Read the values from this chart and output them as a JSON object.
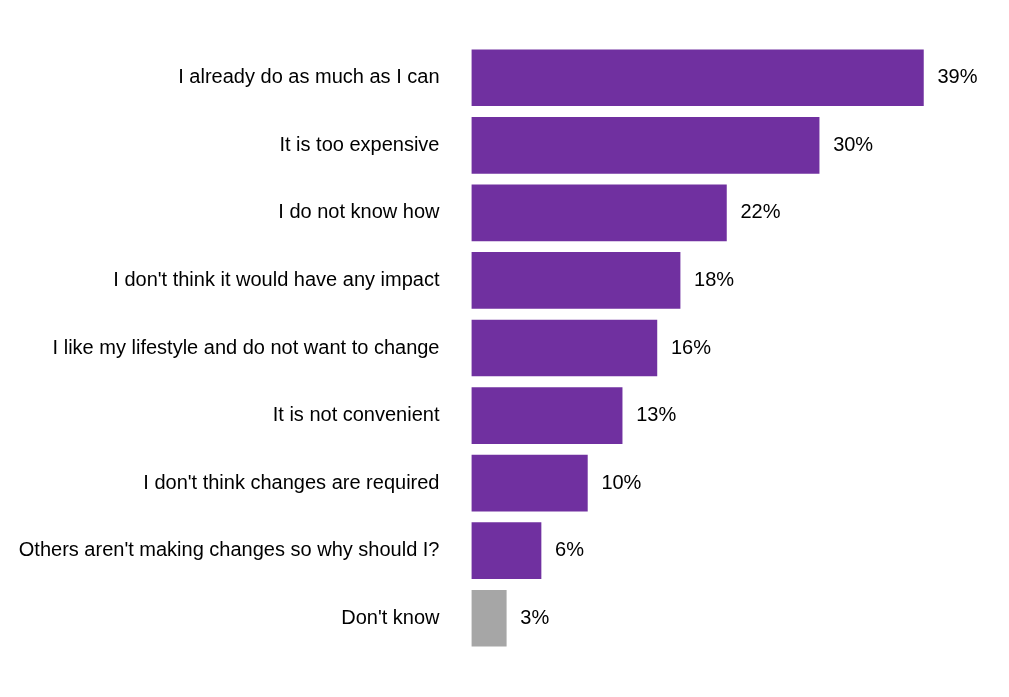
{
  "chart_data": {
    "type": "bar",
    "orientation": "horizontal",
    "categories": [
      "I already do as much as I can",
      "It is too expensive",
      "I do not know how",
      "I don't think it would have any impact",
      "I like my lifestyle and do not want to change",
      "It is not convenient",
      "I don't think changes are required",
      "Others aren't making changes so why should I?",
      "Don't know"
    ],
    "values": [
      39,
      30,
      22,
      18,
      16,
      13,
      10,
      6,
      3
    ],
    "colors": [
      "#7030a0",
      "#7030a0",
      "#7030a0",
      "#7030a0",
      "#7030a0",
      "#7030a0",
      "#7030a0",
      "#7030a0",
      "#a6a6a6"
    ],
    "value_labels": [
      "39%",
      "30%",
      "22%",
      "18%",
      "16%",
      "13%",
      "10%",
      "6%",
      "3%"
    ]
  }
}
